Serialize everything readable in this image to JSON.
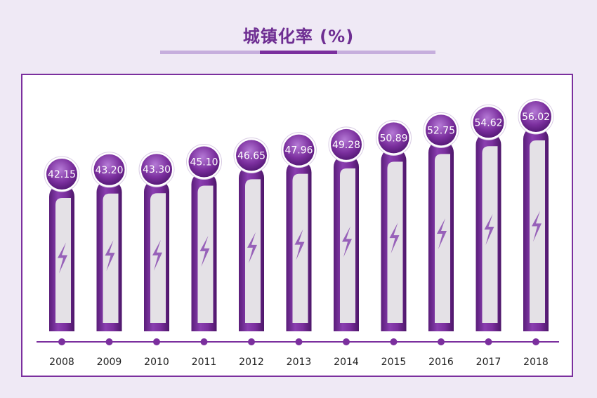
{
  "header": {
    "title": "城镇化率 (%)"
  },
  "chart_data": {
    "type": "bar",
    "title": "城镇化率 (%)",
    "xlabel": "",
    "ylabel": "",
    "categories": [
      "2008",
      "2009",
      "2010",
      "2011",
      "2012",
      "2013",
      "2014",
      "2015",
      "2016",
      "2017",
      "2018"
    ],
    "values": [
      42.15,
      43.2,
      43.3,
      45.1,
      46.65,
      47.96,
      49.28,
      50.89,
      52.75,
      54.62,
      56.02
    ],
    "value_labels": [
      "42.15",
      "43.20",
      "43.30",
      "45.10",
      "46.65",
      "47.96",
      "49.28",
      "50.89",
      "52.75",
      "54.62",
      "56.02"
    ],
    "grid": false,
    "legend": "none"
  },
  "colors": {
    "accent": "#7b2f9e",
    "accent_light": "#b07ad0",
    "accent_dark": "#5a1d7a",
    "background": "#efe9f5",
    "bar_inner": "#e4e1e6",
    "text": "#222222"
  }
}
